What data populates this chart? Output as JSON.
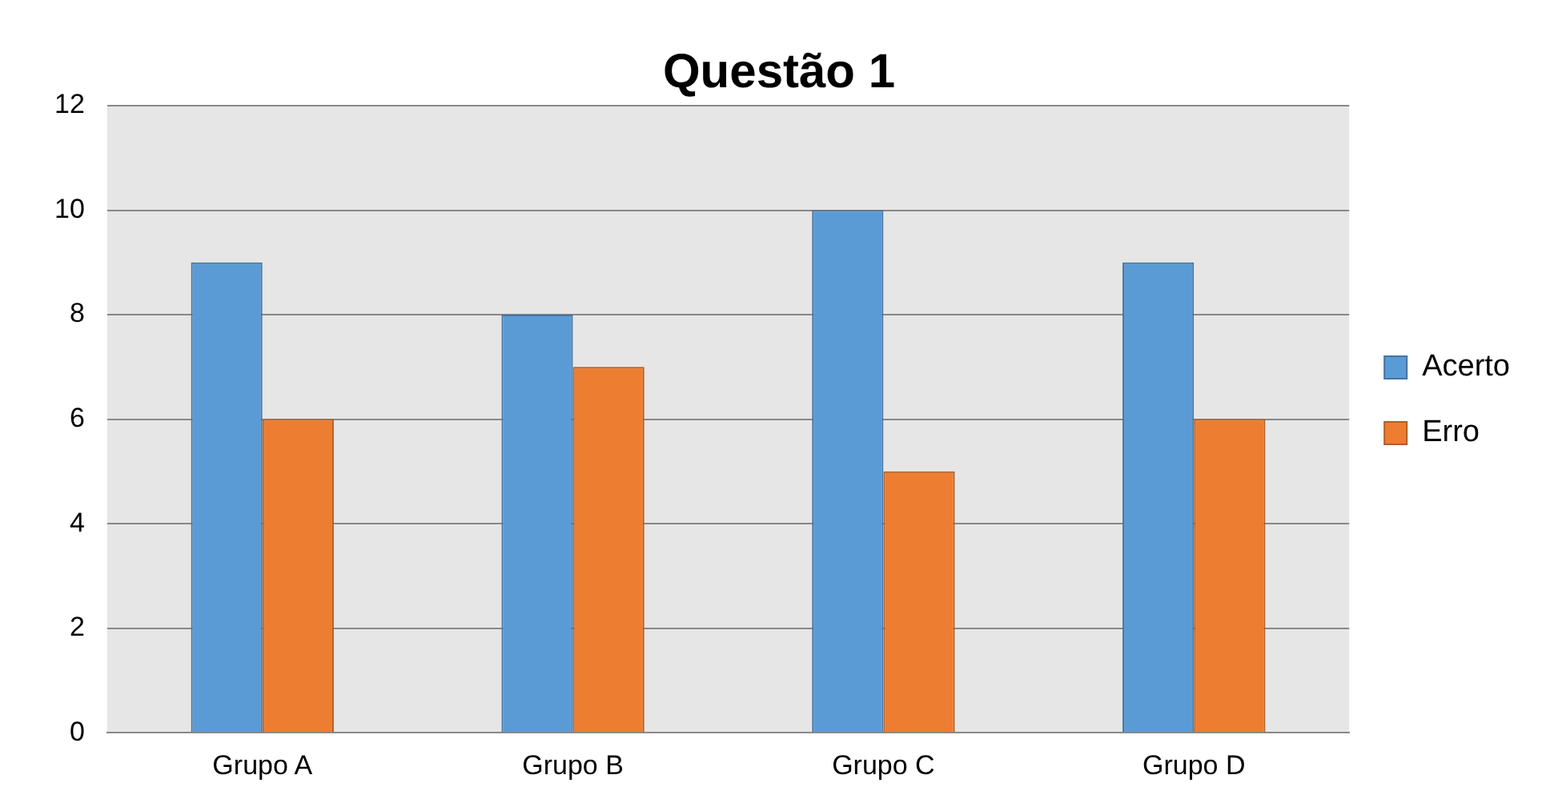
{
  "chart_data": {
    "type": "bar",
    "title": "Questão 1",
    "categories": [
      "Grupo A",
      "Grupo B",
      "Grupo C",
      "Grupo D"
    ],
    "series": [
      {
        "name": "Acerto",
        "color": "#5b9bd5",
        "values": [
          9,
          8,
          10,
          9
        ]
      },
      {
        "name": "Erro",
        "color": "#ed7d31",
        "values": [
          6,
          7,
          5,
          6
        ]
      }
    ],
    "ylim": [
      0,
      12
    ],
    "yticks": [
      0,
      2,
      4,
      6,
      8,
      10,
      12
    ],
    "grid": "y",
    "legend": "right"
  }
}
